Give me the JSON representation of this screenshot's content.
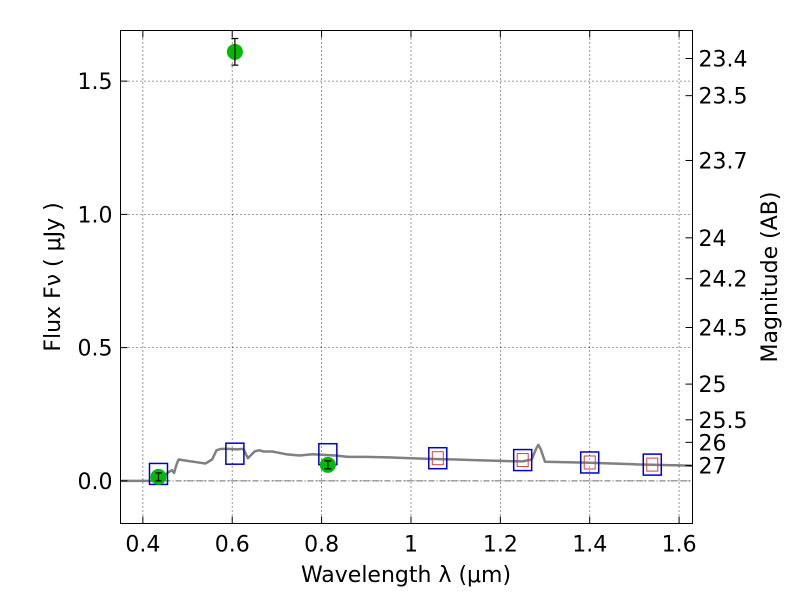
{
  "chart_data": {
    "type": "scatter",
    "xlabel": "Wavelength  λ (μm)",
    "ylabel": "Flux  Fν  ( μJy )",
    "y2label": "Magnitude (AB)",
    "xlim": [
      0.35,
      1.63
    ],
    "ylim": [
      -0.16,
      1.69
    ],
    "grid": true,
    "x_ticks": [
      0.4,
      0.6,
      0.8,
      1.0,
      1.2,
      1.4,
      1.6
    ],
    "x_tick_labels": [
      "0.4",
      "0.6",
      "0.8",
      "1",
      "1.2",
      "1.4",
      "1.6"
    ],
    "y_ticks": [
      0.0,
      0.5,
      1.0,
      1.5
    ],
    "y_tick_labels": [
      "0.0",
      "0.5",
      "1.0",
      "1.5"
    ],
    "magnitude_ticks": [
      "23.4",
      "23.5",
      "23.7",
      "24",
      "24.2",
      "24.5",
      "25",
      "25.5",
      "26",
      "27"
    ],
    "colors": {
      "observed": "#00bb00",
      "model_box": "#0000cc",
      "model_inner": "#d04040",
      "sed": "#808080"
    },
    "observed": [
      {
        "x": 0.435,
        "y": 0.015,
        "err": 0.015
      },
      {
        "x": 0.606,
        "y": 1.61,
        "err": 0.05
      },
      {
        "x": 0.814,
        "y": 0.06,
        "err": 0.015
      }
    ],
    "model_photometry": [
      {
        "x": 0.435,
        "y": 0.026
      },
      {
        "x": 0.606,
        "y": 0.102
      },
      {
        "x": 0.814,
        "y": 0.1
      },
      {
        "x": 1.06,
        "y": 0.085
      },
      {
        "x": 1.25,
        "y": 0.078
      },
      {
        "x": 1.4,
        "y": 0.069
      },
      {
        "x": 1.54,
        "y": 0.061
      }
    ],
    "undetected_inner_at": [
      1.06,
      1.25,
      1.4,
      1.54
    ],
    "sed": {
      "x": [
        0.35,
        0.42,
        0.44,
        0.455,
        0.465,
        0.47,
        0.475,
        0.48,
        0.5,
        0.52,
        0.54,
        0.555,
        0.565,
        0.575,
        0.59,
        0.61,
        0.625,
        0.635,
        0.65,
        0.66,
        0.67,
        0.69,
        0.72,
        0.75,
        0.78,
        0.8,
        0.83,
        0.86,
        0.9,
        0.95,
        1.0,
        1.05,
        1.1,
        1.15,
        1.2,
        1.25,
        1.27,
        1.28,
        1.285,
        1.29,
        1.3,
        1.35,
        1.4,
        1.45,
        1.5,
        1.55,
        1.6,
        1.63
      ],
      "y": [
        0.0,
        0.0,
        0.005,
        0.03,
        0.04,
        0.03,
        0.06,
        0.08,
        0.075,
        0.07,
        0.065,
        0.08,
        0.115,
        0.12,
        0.12,
        0.118,
        0.12,
        0.085,
        0.11,
        0.115,
        0.11,
        0.11,
        0.1,
        0.095,
        0.1,
        0.098,
        0.095,
        0.09,
        0.09,
        0.088,
        0.085,
        0.082,
        0.08,
        0.077,
        0.075,
        0.073,
        0.08,
        0.12,
        0.135,
        0.12,
        0.072,
        0.07,
        0.068,
        0.065,
        0.062,
        0.06,
        0.058,
        0.057
      ]
    }
  }
}
